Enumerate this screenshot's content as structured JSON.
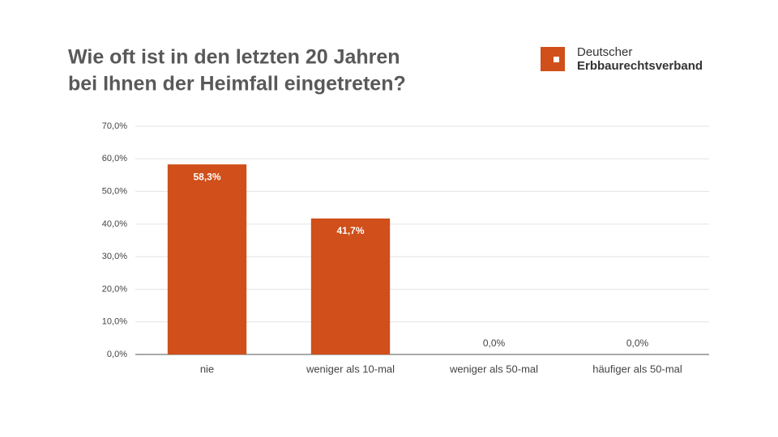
{
  "chart_data": {
    "type": "bar",
    "title": [
      "Wie oft ist in den letzten 20 Jahren",
      "bei Ihnen der Heimfall eingetreten?"
    ],
    "categories": [
      "nie",
      "weniger als 10-mal",
      "weniger als 50-mal",
      "häufiger als 50-mal"
    ],
    "values": [
      58.3,
      41.7,
      0,
      0
    ],
    "value_labels": [
      "58,3%",
      "41,7%",
      "0,0%",
      "0,0%"
    ],
    "color": "#d04f1a",
    "ylim": [
      0,
      70
    ],
    "yticks": [
      {
        "value": 0,
        "label": "0,0%"
      },
      {
        "value": 10,
        "label": "10,0%"
      },
      {
        "value": 20,
        "label": "20,0%"
      },
      {
        "value": 30,
        "label": "30,0%"
      },
      {
        "value": 40,
        "label": "40,0%"
      },
      {
        "value": 50,
        "label": "50,0%"
      },
      {
        "value": 60,
        "label": "60,0%"
      },
      {
        "value": 70,
        "label": "70,0%"
      }
    ],
    "grid": true
  },
  "logo": [
    "Deutscher",
    "Erbbaurechtsverband"
  ]
}
